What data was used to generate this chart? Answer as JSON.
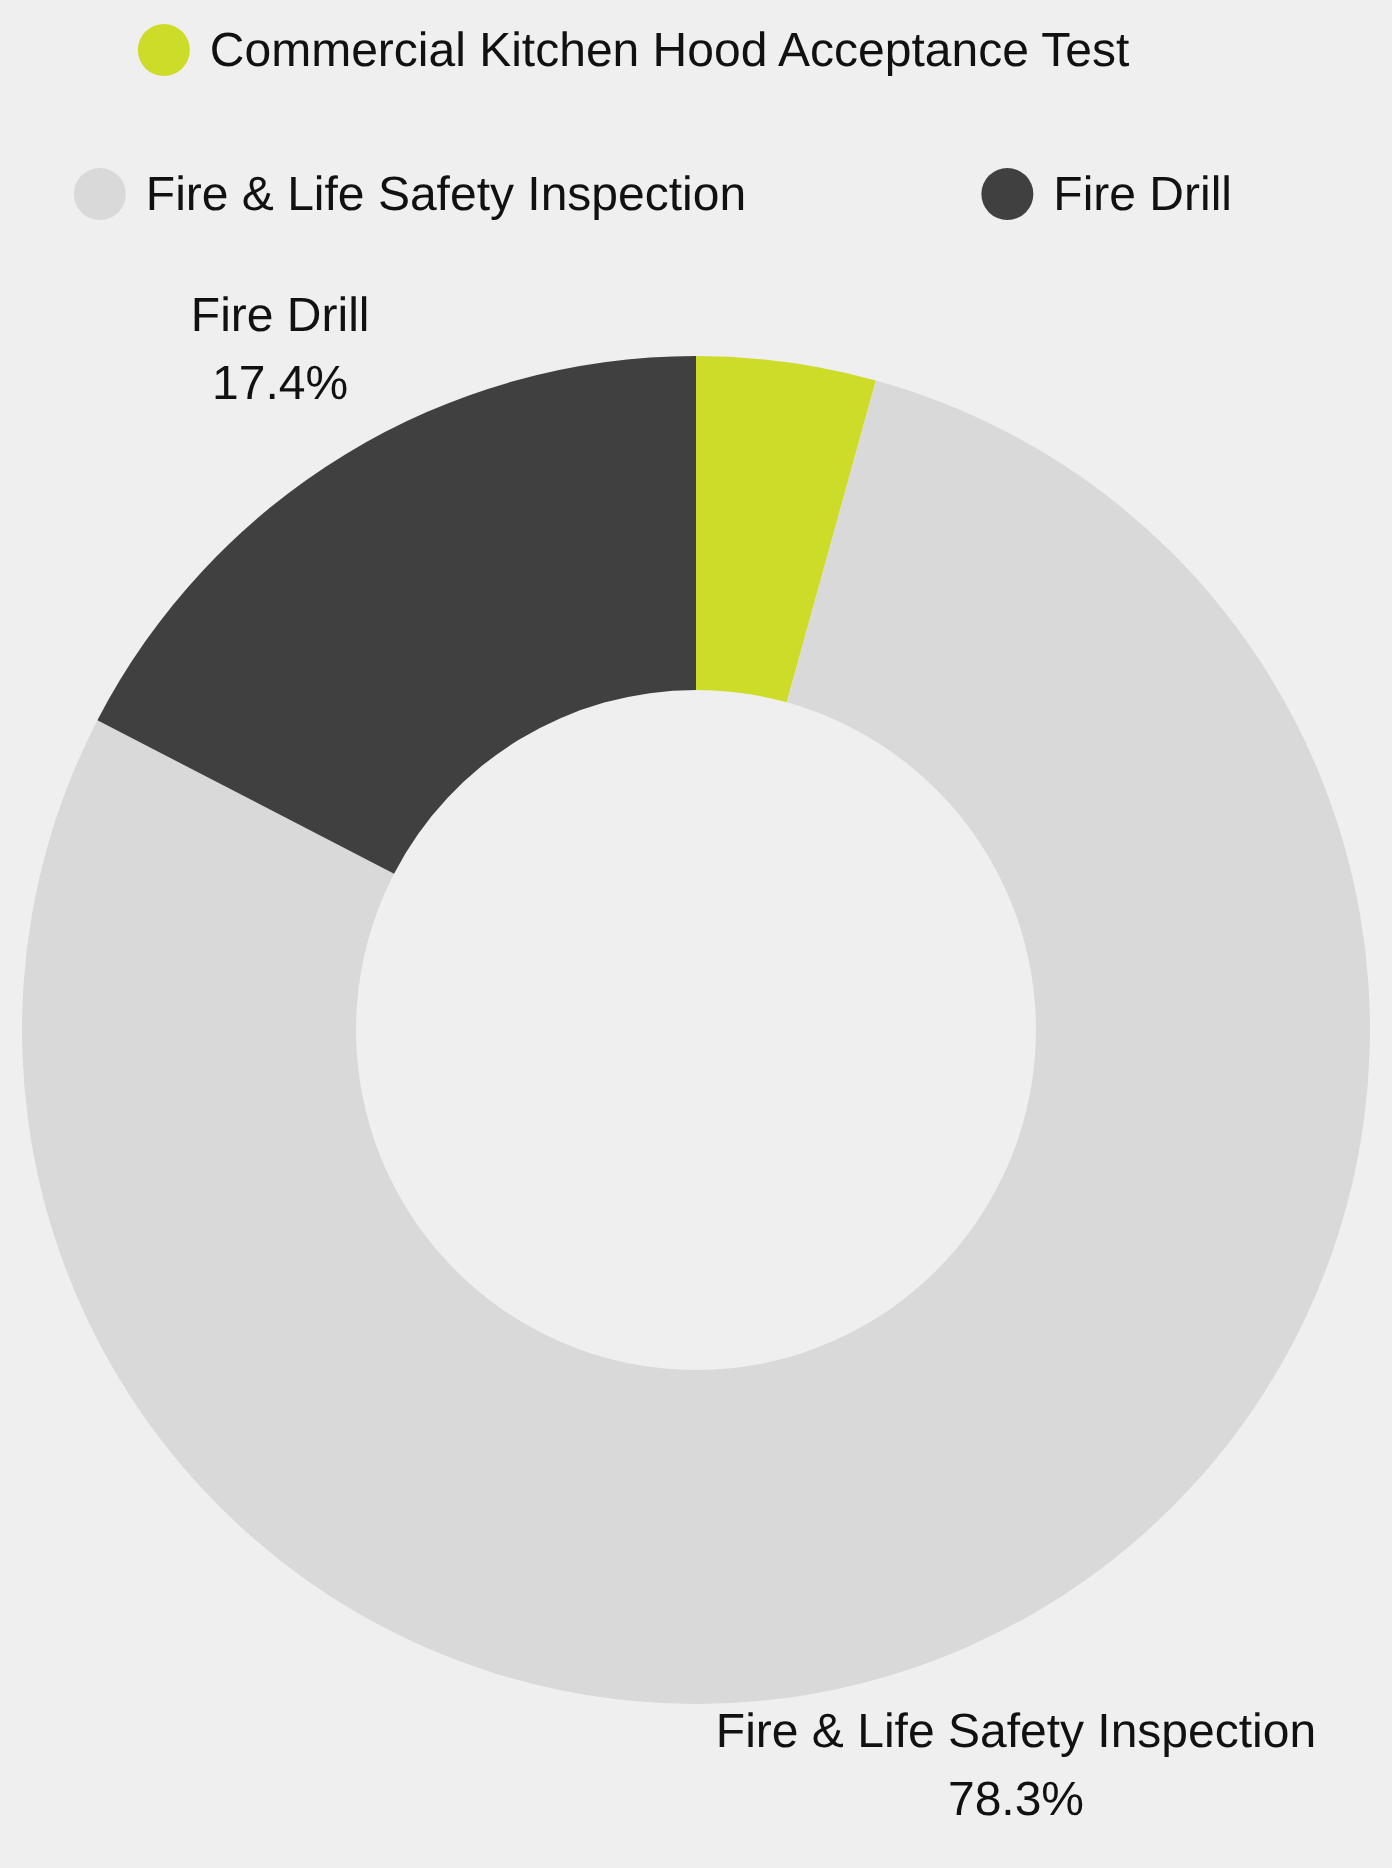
{
  "chart_data": {
    "type": "donut",
    "categories": [
      "Commercial Kitchen Hood Acceptance Test",
      "Fire & Life Safety Inspection",
      "Fire Drill"
    ],
    "values": [
      4.3,
      78.3,
      17.4
    ],
    "colors": [
      "#cddc29",
      "#d9d9d9",
      "#404040"
    ],
    "value_labels": [
      null,
      "78.3%",
      "17.4%"
    ],
    "legend": "top"
  }
}
